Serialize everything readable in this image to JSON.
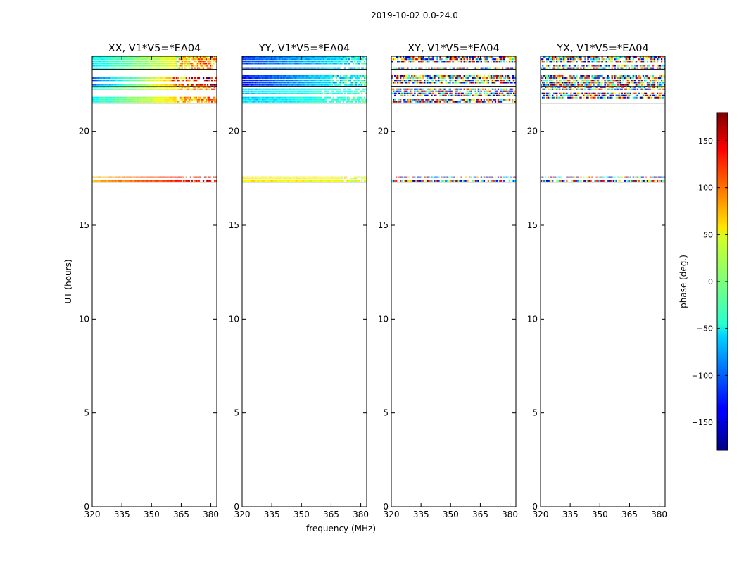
{
  "figure": {
    "suptitle": "2019-10-02 0.0-24.0",
    "colorbar": {
      "label": "phase (deg.)",
      "range": [
        -180,
        180
      ],
      "ticks": [
        -150,
        -100,
        -50,
        0,
        50,
        100,
        150
      ],
      "tick_labels": [
        "−150",
        "−100",
        "−50",
        "0",
        "50",
        "100",
        "150"
      ],
      "colormap": "jet"
    }
  },
  "chart_data": [
    {
      "type": "heatmap",
      "title": "XX, V1*V5=*EA04",
      "xlabel": "",
      "ylabel": "UT (hours)",
      "xlim": [
        320,
        383
      ],
      "ylim": [
        0,
        24
      ],
      "xticks": [
        320,
        335,
        350,
        365,
        380
      ],
      "yticks": [
        0,
        5,
        10,
        15,
        20
      ],
      "bands": [
        {
          "ut": [
            23.3,
            24.0
          ],
          "phase_start": -50,
          "phase_end": 90,
          "noise": 60,
          "noisy_from": 362
        },
        {
          "ut": [
            22.4,
            23.0
          ],
          "phase_start": -100,
          "phase_end": 170,
          "noise": 70,
          "noisy_from": 360
        },
        {
          "ut": [
            21.5,
            22.4
          ],
          "phase_start": -40,
          "phase_end": 100,
          "noise": 40,
          "noisy_from": 363
        },
        {
          "ut": [
            17.3,
            17.6
          ],
          "phase_start": 70,
          "phase_end": 150,
          "noise": 40,
          "noisy_from": 365
        }
      ]
    },
    {
      "type": "heatmap",
      "title": "YY, V1*V5=*EA04",
      "xlabel": "frequency (MHz)",
      "ylabel": "",
      "xlim": [
        320,
        383
      ],
      "ylim": [
        0,
        24
      ],
      "xticks": [
        320,
        335,
        350,
        365,
        380
      ],
      "yticks": [
        0,
        5,
        10,
        15,
        20
      ],
      "bands": [
        {
          "ut": [
            23.3,
            24.0
          ],
          "phase_start": -110,
          "phase_end": -40,
          "noise": 40,
          "noisy_from": 370
        },
        {
          "ut": [
            22.4,
            23.0
          ],
          "phase_start": -130,
          "phase_end": -20,
          "noise": 50,
          "noisy_from": 365
        },
        {
          "ut": [
            21.5,
            22.4
          ],
          "phase_start": -60,
          "phase_end": -20,
          "noise": 20,
          "noisy_from": 360
        },
        {
          "ut": [
            17.3,
            17.6
          ],
          "phase_start": 50,
          "phase_end": 40,
          "noise": 30,
          "noisy_from": 370
        }
      ]
    },
    {
      "type": "heatmap",
      "title": "XY, V1*V5=*EA04",
      "xlabel": "",
      "ylabel": "",
      "xlim": [
        320,
        383
      ],
      "ylim": [
        0,
        24
      ],
      "xticks": [
        320,
        335,
        350,
        365,
        380
      ],
      "yticks": [
        0,
        5,
        10,
        15,
        20
      ],
      "bands": [
        {
          "ut": [
            23.3,
            24.0
          ],
          "phase_start": 0,
          "phase_end": 0,
          "noise": 180,
          "noisy_from": 320
        },
        {
          "ut": [
            22.4,
            23.0
          ],
          "phase_start": 0,
          "phase_end": 0,
          "noise": 180,
          "noisy_from": 320
        },
        {
          "ut": [
            21.5,
            22.4
          ],
          "phase_start": 0,
          "phase_end": 0,
          "noise": 180,
          "noisy_from": 320
        },
        {
          "ut": [
            17.3,
            17.6
          ],
          "phase_start": 0,
          "phase_end": 0,
          "noise": 180,
          "noisy_from": 320
        }
      ]
    },
    {
      "type": "heatmap",
      "title": "YX, V1*V5=*EA04",
      "xlabel": "",
      "ylabel": "",
      "xlim": [
        320,
        383
      ],
      "ylim": [
        0,
        24
      ],
      "xticks": [
        320,
        335,
        350,
        365,
        380
      ],
      "yticks": [
        0,
        5,
        10,
        15,
        20
      ],
      "bands": [
        {
          "ut": [
            23.3,
            24.0
          ],
          "phase_start": 0,
          "phase_end": 0,
          "noise": 180,
          "noisy_from": 320
        },
        {
          "ut": [
            22.4,
            23.0
          ],
          "phase_start": 0,
          "phase_end": 0,
          "noise": 180,
          "noisy_from": 320
        },
        {
          "ut": [
            21.5,
            22.4
          ],
          "phase_start": 0,
          "phase_end": 0,
          "noise": 180,
          "noisy_from": 320
        },
        {
          "ut": [
            17.3,
            17.6
          ],
          "phase_start": 0,
          "phase_end": 0,
          "noise": 180,
          "noisy_from": 320
        }
      ]
    }
  ]
}
